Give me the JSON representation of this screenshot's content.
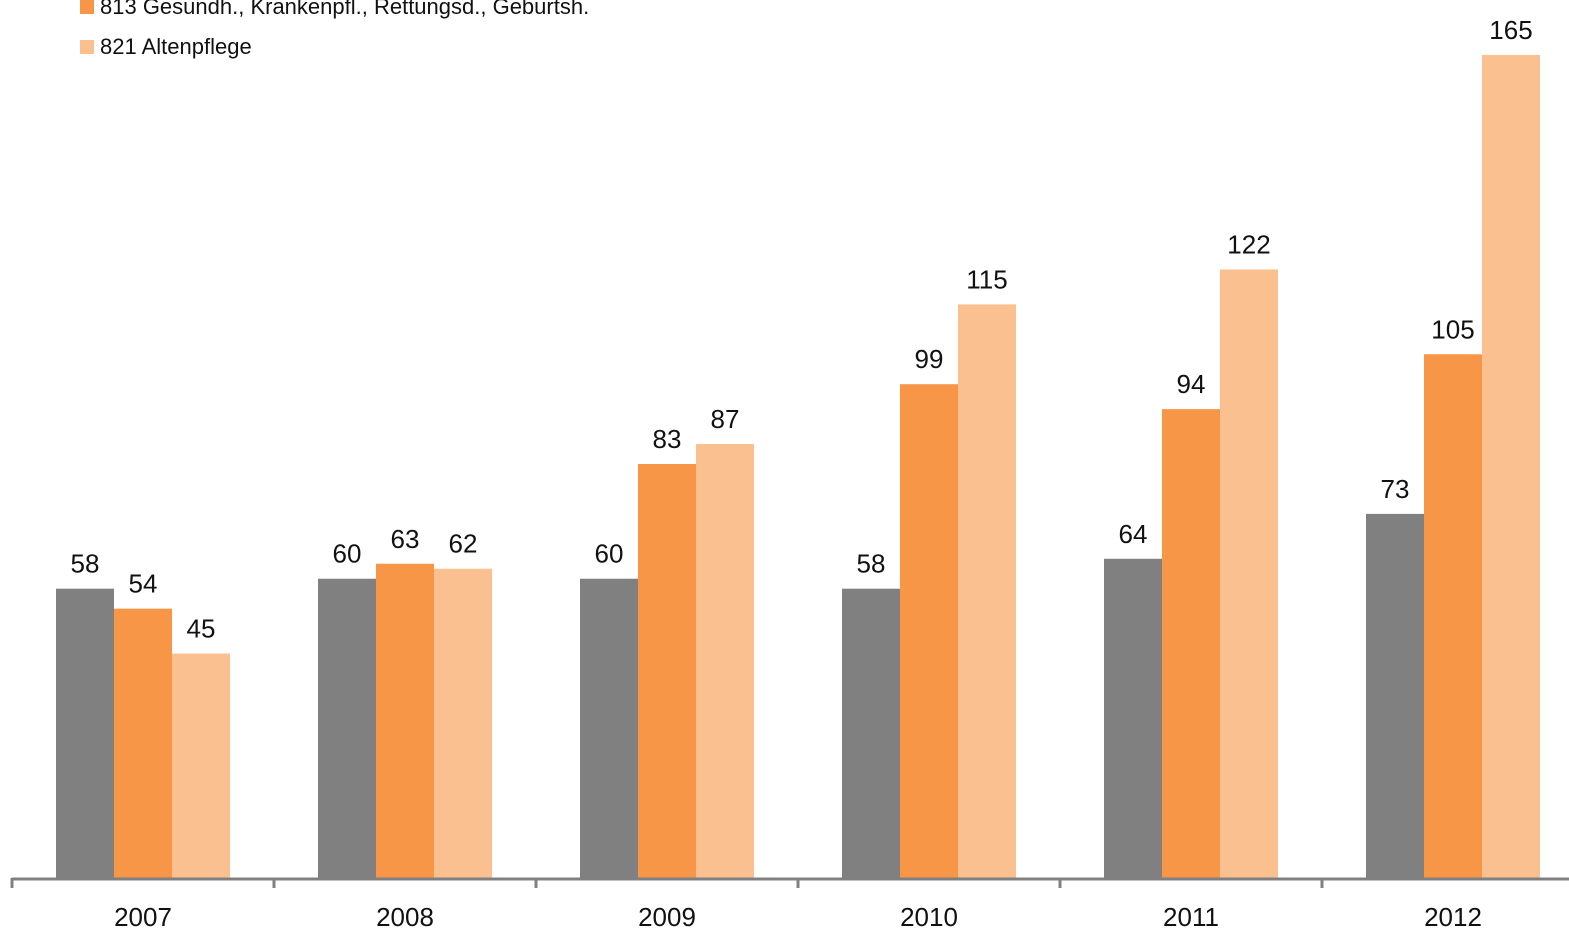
{
  "chart_data": {
    "type": "bar",
    "title": "",
    "xlabel": "",
    "ylabel": "",
    "categories": [
      "2007",
      "2008",
      "2009",
      "2010",
      "2011",
      "2012"
    ],
    "series": [
      {
        "name": "",
        "color": "#808080",
        "values": [
          58,
          60,
          60,
          58,
          64,
          73
        ]
      },
      {
        "name": "813 Gesundh., Krankenpfl., Rettungsd., Geburtsh.",
        "color": "#F79646",
        "values": [
          54,
          63,
          83,
          99,
          94,
          105
        ]
      },
      {
        "name": "821 Altenpflege",
        "color": "#FAC090",
        "values": [
          45,
          62,
          87,
          115,
          122,
          165
        ]
      }
    ],
    "ylim": [
      0,
      166
    ],
    "grid": false,
    "legend_position": "top-left",
    "data_labels": true
  }
}
